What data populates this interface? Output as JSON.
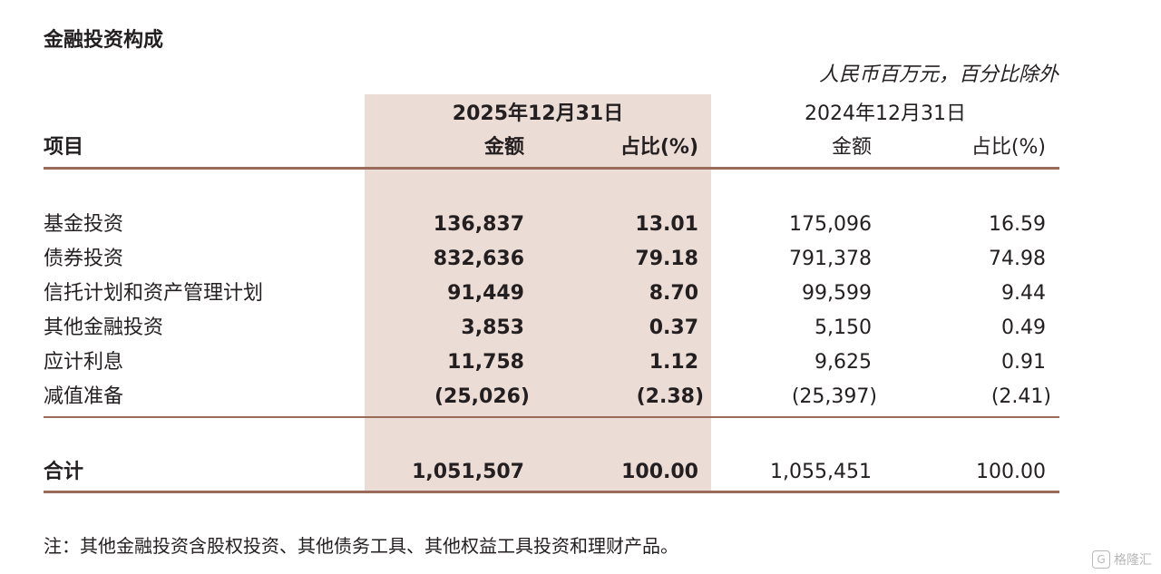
{
  "title": "金融投资构成",
  "unit_note": "人民币百万元，百分比除外",
  "headers": {
    "period_current": "2025年12月31日",
    "period_prior": "2024年12月31日",
    "item": "项目",
    "amount_current": "金额",
    "share_current": "占比(%)",
    "amount_prior": "金额",
    "share_prior": "占比(%)"
  },
  "rows": [
    {
      "label": "基金投资",
      "amount_2025": "136,837",
      "share_2025": "13.01",
      "amount_2024": "175,096",
      "share_2024": "16.59"
    },
    {
      "label": "债券投资",
      "amount_2025": "832,636",
      "share_2025": "79.18",
      "amount_2024": "791,378",
      "share_2024": "74.98"
    },
    {
      "label": "信托计划和资产管理计划",
      "amount_2025": "91,449",
      "share_2025": "8.70",
      "amount_2024": "99,599",
      "share_2024": "9.44"
    },
    {
      "label": "其他金融投资",
      "amount_2025": "3,853",
      "share_2025": "0.37",
      "amount_2024": "5,150",
      "share_2024": "0.49"
    },
    {
      "label": "应计利息",
      "amount_2025": "11,758",
      "share_2025": "1.12",
      "amount_2024": "9,625",
      "share_2024": "0.91"
    },
    {
      "label": "减值准备",
      "amount_2025": "(25,026)",
      "share_2025": "(2.38)",
      "amount_2024": "(25,397)",
      "share_2024": "(2.41)"
    }
  ],
  "total": {
    "label": "合计",
    "amount_2025": "1,051,507",
    "share_2025": "100.00",
    "amount_2024": "1,055,451",
    "share_2024": "100.00"
  },
  "footnote": "注：其他金融投资含股权投资、其他债务工具、其他权益工具投资和理财产品。",
  "watermark": "格隆汇",
  "colors": {
    "highlight_column": "#ecdcd6",
    "rule": "#9a6a5a",
    "text": "#231f20"
  }
}
